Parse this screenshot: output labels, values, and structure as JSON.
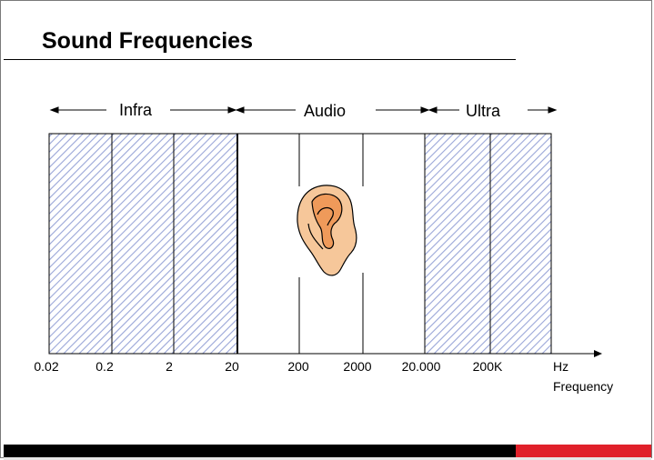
{
  "title": "Sound Frequencies",
  "bands": {
    "infra": "Infra",
    "audio": "Audio",
    "ultra": "Ultra"
  },
  "ticks": [
    "0.02",
    "0.2",
    "2",
    "20",
    "200",
    "2000",
    "20.000",
    "200K"
  ],
  "axis": {
    "unit": "Hz",
    "label": "Frequency"
  },
  "colors": {
    "hatch": "#9aa6d8",
    "accent_red": "#e0202a",
    "ear_fill": "#f6c79a",
    "ear_inner": "#ef9a5a"
  },
  "ear_icon": "ear-icon"
}
